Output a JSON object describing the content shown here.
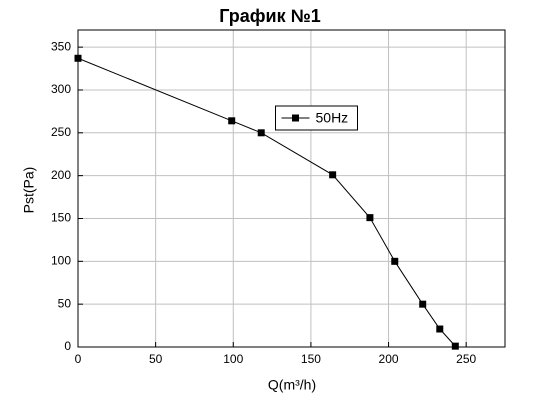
{
  "chart_data": {
    "type": "line",
    "title": "График №1",
    "x_label": "Q(m³/h)",
    "y_label": "Pst(Pa)",
    "x": [
      0,
      99,
      118,
      164,
      188,
      204,
      222,
      233,
      243
    ],
    "series": [
      {
        "name": "50Hz",
        "color": "#000000",
        "values": [
          337,
          264,
          250,
          201,
          151,
          100,
          50,
          21,
          1
        ]
      }
    ],
    "xlim": [
      0,
      275
    ],
    "xticks": [
      0,
      50,
      100,
      150,
      200,
      250
    ],
    "ylim": [
      0,
      370
    ],
    "yticks": [
      0,
      50,
      100,
      150,
      200,
      250,
      300,
      350
    ],
    "grid": true,
    "legend": "upper center"
  }
}
